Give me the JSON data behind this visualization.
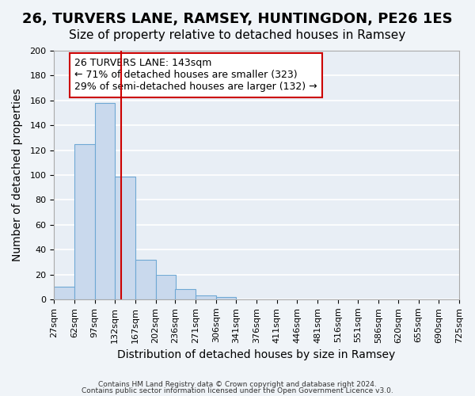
{
  "title": "26, TURVERS LANE, RAMSEY, HUNTINGDON, PE26 1ES",
  "subtitle": "Size of property relative to detached houses in Ramsey",
  "xlabel": "Distribution of detached houses by size in Ramsey",
  "ylabel": "Number of detached properties",
  "bin_labels": [
    "27sqm",
    "62sqm",
    "97sqm",
    "132sqm",
    "167sqm",
    "202sqm",
    "236sqm",
    "271sqm",
    "306sqm",
    "341sqm",
    "376sqm",
    "411sqm",
    "446sqm",
    "481sqm",
    "516sqm",
    "551sqm",
    "586sqm",
    "620sqm",
    "655sqm",
    "690sqm",
    "725sqm"
  ],
  "bar_values": [
    10,
    125,
    158,
    99,
    32,
    20,
    8,
    3,
    2,
    0,
    0,
    0,
    0,
    0,
    0,
    0,
    0,
    0,
    0,
    0
  ],
  "bar_color": "#c9d9ed",
  "bar_edge_color": "#6fa8d4",
  "background_color": "#e8eef5",
  "grid_color": "#ffffff",
  "vline_x": 143,
  "vline_color": "#cc0000",
  "bin_edges": [
    27,
    62,
    97,
    132,
    167,
    202,
    236,
    271,
    306,
    341,
    376,
    411,
    446,
    481,
    516,
    551,
    586,
    620,
    655,
    690,
    725
  ],
  "annotation_title": "26 TURVERS LANE: 143sqm",
  "annotation_line1": "← 71% of detached houses are smaller (323)",
  "annotation_line2": "29% of semi-detached houses are larger (132) →",
  "annotation_box_color": "#ffffff",
  "annotation_box_edge": "#cc0000",
  "ylim": [
    0,
    200
  ],
  "yticks": [
    0,
    20,
    40,
    60,
    80,
    100,
    120,
    140,
    160,
    180,
    200
  ],
  "footer1": "Contains HM Land Registry data © Crown copyright and database right 2024.",
  "footer2": "Contains public sector information licensed under the Open Government Licence v3.0.",
  "title_fontsize": 13,
  "subtitle_fontsize": 11,
  "axis_label_fontsize": 10,
  "tick_fontsize": 8,
  "annotation_fontsize": 9
}
